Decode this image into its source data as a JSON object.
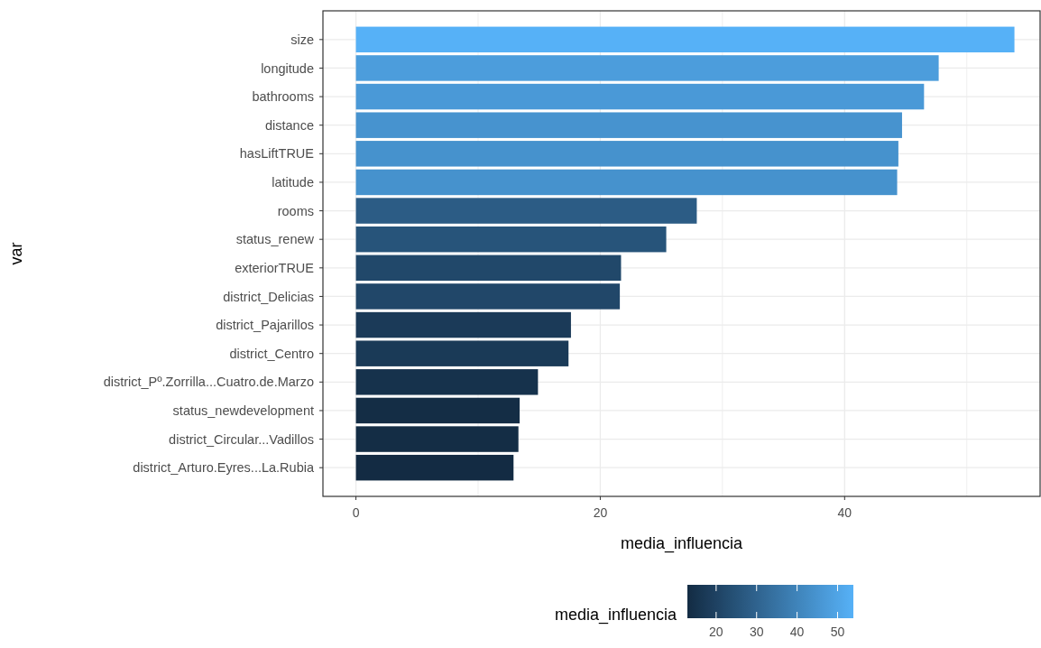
{
  "chart_data": {
    "type": "bar",
    "orientation": "horizontal",
    "xlabel": "media_influencia",
    "ylabel": "var",
    "clabel": "media_influencia",
    "categories": [
      "size",
      "longitude",
      "bathrooms",
      "distance",
      "hasLiftTRUE",
      "latitude",
      "rooms",
      "status_renew",
      "exteriorTRUE",
      "district_Delicias",
      "district_Pajarillos",
      "district_Centro",
      "district_Pº.Zorrilla...Cuatro.de.Marzo",
      "status_newdevelopment",
      "district_Circular...Vadillos",
      "district_Arturo.Eyres...La.Rubia"
    ],
    "values": [
      53.9,
      47.7,
      46.5,
      44.7,
      44.4,
      44.3,
      27.9,
      25.4,
      21.7,
      21.6,
      17.6,
      17.4,
      14.9,
      13.4,
      13.3,
      12.9
    ],
    "colors": [
      "#56b1f7",
      "#4c9ddc",
      "#4a99d7",
      "#4793cf",
      "#4692cd",
      "#4692cd",
      "#2c5c85",
      "#27547a",
      "#21486a",
      "#214769",
      "#1b3a58",
      "#1a3a57",
      "#16324c",
      "#142d45",
      "#142d45",
      "#132b43"
    ],
    "xlim": [
      -2.7,
      56.0
    ],
    "xticks": [
      0,
      {
        "value": 10,
        "label": null
      },
      20,
      {
        "value": 30,
        "label": null
      },
      40,
      {
        "value": 50,
        "label": null
      }
    ],
    "clim": [
      12.9,
      53.9
    ],
    "cticks": [
      20,
      30,
      40,
      50
    ],
    "grid": true
  }
}
